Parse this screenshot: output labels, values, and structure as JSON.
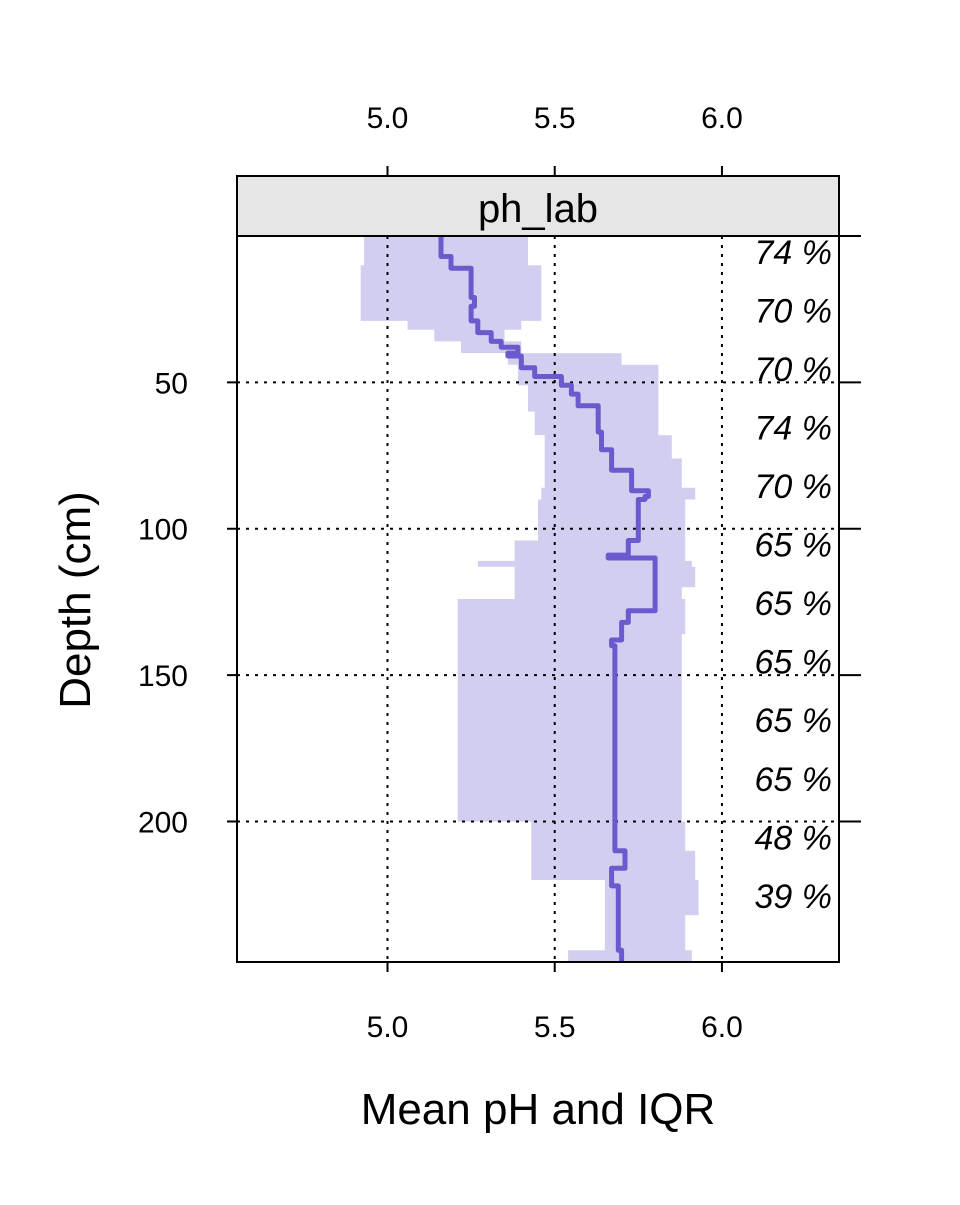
{
  "chart_data": {
    "type": "area",
    "panel_title": "ph_lab",
    "xlabel": "Mean pH and IQR",
    "ylabel": "Depth (cm)",
    "xlim": [
      4.55,
      6.35
    ],
    "ylim": [
      0,
      248
    ],
    "x_ticks": [
      "5.0",
      "5.5",
      "6.0"
    ],
    "y_ticks": [
      "50",
      "100",
      "150",
      "200"
    ],
    "grid": true,
    "colors": {
      "line": "#6a5acd",
      "band": "#d2ceef"
    },
    "series": [
      {
        "name": "mean",
        "depth": [
          0,
          7,
          7,
          11,
          11,
          21,
          21,
          24,
          24,
          29,
          29,
          33,
          33,
          36,
          36,
          38,
          38,
          40,
          40,
          41,
          41,
          45,
          45,
          48,
          48,
          51,
          51,
          54,
          54,
          58,
          58,
          67,
          67,
          73,
          73,
          80,
          80,
          87,
          87,
          89,
          89,
          90,
          90,
          104,
          104,
          109,
          109,
          110,
          110,
          112,
          112,
          128,
          128,
          132,
          132,
          138,
          138,
          140,
          140,
          210,
          210,
          216,
          216,
          222,
          222,
          244,
          244,
          248
        ],
        "mean": [
          5.16,
          5.16,
          5.19,
          5.19,
          5.25,
          5.25,
          5.26,
          5.26,
          5.25,
          5.25,
          5.27,
          5.27,
          5.31,
          5.31,
          5.34,
          5.34,
          5.39,
          5.39,
          5.36,
          5.36,
          5.4,
          5.4,
          5.44,
          5.44,
          5.52,
          5.52,
          5.55,
          5.55,
          5.57,
          5.57,
          5.63,
          5.63,
          5.64,
          5.64,
          5.67,
          5.67,
          5.73,
          5.73,
          5.78,
          5.78,
          5.77,
          5.77,
          5.75,
          5.75,
          5.72,
          5.72,
          5.66,
          5.66,
          5.8,
          5.8,
          5.8,
          5.8,
          5.72,
          5.72,
          5.7,
          5.7,
          5.67,
          5.67,
          5.68,
          5.68,
          5.71,
          5.71,
          5.67,
          5.67,
          5.69,
          5.69,
          5.7,
          5.7
        ]
      },
      {
        "name": "iqr",
        "depth": [
          0,
          10,
          10,
          29,
          29,
          32,
          32,
          36,
          36,
          40,
          40,
          44,
          44,
          51,
          51,
          60,
          60,
          68,
          68,
          76,
          76,
          86,
          86,
          90,
          90,
          98,
          98,
          104,
          104,
          111,
          111,
          113,
          113,
          120,
          120,
          124,
          124,
          136,
          136,
          145,
          145,
          150,
          150,
          175,
          175,
          200,
          200,
          208,
          208,
          210,
          210,
          220,
          220,
          232,
          232,
          240,
          240,
          244,
          244,
          248
        ],
        "q25": [
          4.93,
          4.93,
          4.92,
          4.92,
          5.06,
          5.06,
          5.14,
          5.14,
          5.22,
          5.22,
          5.36,
          5.36,
          5.39,
          5.39,
          5.42,
          5.42,
          5.44,
          5.44,
          5.47,
          5.47,
          5.47,
          5.47,
          5.46,
          5.46,
          5.45,
          5.45,
          5.45,
          5.45,
          5.38,
          5.38,
          5.27,
          5.27,
          5.38,
          5.38,
          5.38,
          5.38,
          5.21,
          5.21,
          5.21,
          5.21,
          5.21,
          5.21,
          5.21,
          5.21,
          5.21,
          5.21,
          5.43,
          5.43,
          5.43,
          5.43,
          5.43,
          5.43,
          5.65,
          5.65,
          5.65,
          5.65,
          5.65,
          5.65,
          5.54,
          5.54
        ],
        "q75": [
          5.42,
          5.42,
          5.46,
          5.46,
          5.4,
          5.4,
          5.35,
          5.35,
          5.4,
          5.4,
          5.7,
          5.7,
          5.81,
          5.81,
          5.81,
          5.81,
          5.81,
          5.81,
          5.85,
          5.85,
          5.88,
          5.88,
          5.92,
          5.92,
          5.89,
          5.89,
          5.89,
          5.89,
          5.89,
          5.89,
          5.91,
          5.91,
          5.92,
          5.92,
          5.88,
          5.88,
          5.89,
          5.89,
          5.88,
          5.88,
          5.88,
          5.88,
          5.88,
          5.88,
          5.88,
          5.88,
          5.89,
          5.89,
          5.89,
          5.89,
          5.92,
          5.92,
          5.93,
          5.93,
          5.89,
          5.89,
          5.89,
          5.89,
          5.91,
          5.91
        ]
      }
    ],
    "annotations": [
      {
        "text": "74 %",
        "depth": 2
      },
      {
        "text": "70 %",
        "depth": 22
      },
      {
        "text": "70 %",
        "depth": 42
      },
      {
        "text": "74 %",
        "depth": 62
      },
      {
        "text": "70 %",
        "depth": 82
      },
      {
        "text": "65 %",
        "depth": 102
      },
      {
        "text": "65 %",
        "depth": 122
      },
      {
        "text": "65 %",
        "depth": 142
      },
      {
        "text": "65 %",
        "depth": 162
      },
      {
        "text": "65 %",
        "depth": 182
      },
      {
        "text": "48 %",
        "depth": 202
      },
      {
        "text": "39 %",
        "depth": 222
      }
    ]
  }
}
